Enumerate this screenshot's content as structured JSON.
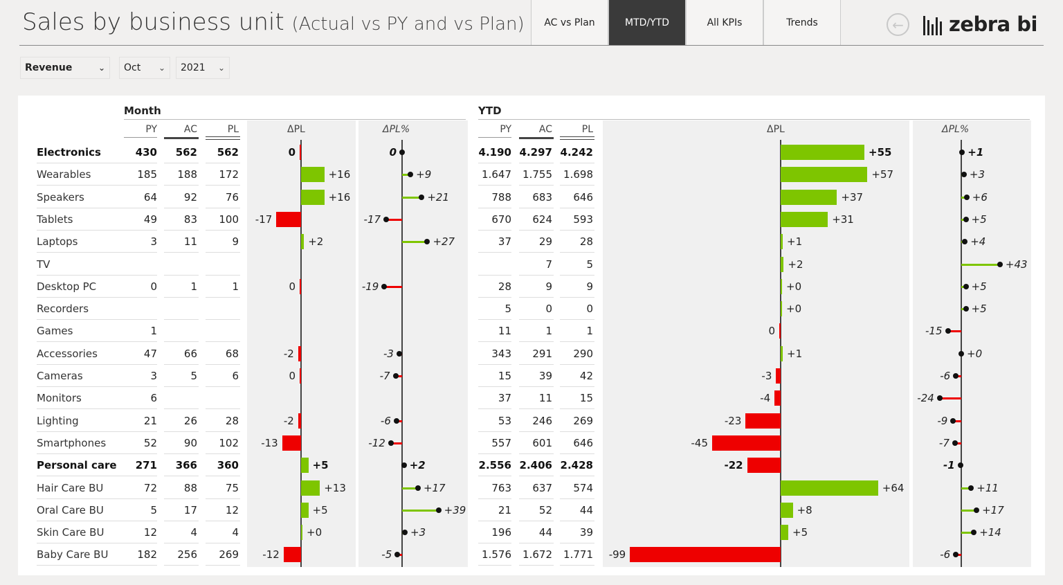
{
  "header": {
    "title": "Sales by business unit",
    "subtitle": "(Actual vs PY and vs Plan)",
    "tabs": [
      {
        "label": "AC vs Plan",
        "active": false
      },
      {
        "label": "MTD/YTD",
        "active": true
      },
      {
        "label": "All KPIs",
        "active": false
      },
      {
        "label": "Trends",
        "active": false
      }
    ],
    "back_icon": "arrow-left-circle-icon",
    "logo_text": "zebra bi"
  },
  "filters": {
    "measure": "Revenue",
    "month": "Oct",
    "year": "2021"
  },
  "colors": {
    "positive": "#7ec500",
    "negative": "#ee0000",
    "axis": "#444444",
    "active_tab": "#3a3a3a",
    "column_shade": "#f0f0f0"
  },
  "table": {
    "month_header": "Month",
    "ytd_header": "YTD",
    "col_headers": {
      "py": "PY",
      "ac": "AC",
      "pl": "PL",
      "dpl": "ΔPL",
      "dplpct": "ΔPL%"
    },
    "rows": [
      {
        "name": "Electronics",
        "bold": true,
        "m": {
          "py": "430",
          "ac": "562",
          "pl": "562",
          "dpl": 0,
          "dpl_label": "0",
          "pct": 0,
          "pct_label": "0"
        },
        "y": {
          "py": "4.190",
          "ac": "4.297",
          "pl": "4.242",
          "dpl": 55,
          "dpl_label": "+55",
          "pct": 1,
          "pct_label": "+1"
        }
      },
      {
        "name": "Wearables",
        "bold": false,
        "m": {
          "py": "185",
          "ac": "188",
          "pl": "172",
          "dpl": 16,
          "dpl_label": "+16",
          "pct": 9,
          "pct_label": "+9"
        },
        "y": {
          "py": "1.647",
          "ac": "1.755",
          "pl": "1.698",
          "dpl": 57,
          "dpl_label": "+57",
          "pct": 3,
          "pct_label": "+3"
        }
      },
      {
        "name": "Speakers",
        "bold": false,
        "m": {
          "py": "64",
          "ac": "92",
          "pl": "76",
          "dpl": 16,
          "dpl_label": "+16",
          "pct": 21,
          "pct_label": "+21"
        },
        "y": {
          "py": "788",
          "ac": "683",
          "pl": "646",
          "dpl": 37,
          "dpl_label": "+37",
          "pct": 6,
          "pct_label": "+6"
        }
      },
      {
        "name": "Tablets",
        "bold": false,
        "m": {
          "py": "49",
          "ac": "83",
          "pl": "100",
          "dpl": -17,
          "dpl_label": "-17",
          "pct": -17,
          "pct_label": "-17"
        },
        "y": {
          "py": "670",
          "ac": "624",
          "pl": "593",
          "dpl": 31,
          "dpl_label": "+31",
          "pct": 5,
          "pct_label": "+5"
        }
      },
      {
        "name": "Laptops",
        "bold": false,
        "m": {
          "py": "3",
          "ac": "11",
          "pl": "9",
          "dpl": 2,
          "dpl_label": "+2",
          "pct": 27,
          "pct_label": "+27"
        },
        "y": {
          "py": "37",
          "ac": "29",
          "pl": "28",
          "dpl": 1,
          "dpl_label": "+1",
          "pct": 4,
          "pct_label": "+4"
        }
      },
      {
        "name": "TV",
        "bold": false,
        "m": {
          "py": "",
          "ac": "",
          "pl": "",
          "dpl": null,
          "dpl_label": "",
          "pct": null,
          "pct_label": ""
        },
        "y": {
          "py": "",
          "ac": "7",
          "pl": "5",
          "dpl": 2,
          "dpl_label": "+2",
          "pct": 43,
          "pct_label": "+43"
        }
      },
      {
        "name": "Desktop PC",
        "bold": false,
        "m": {
          "py": "0",
          "ac": "1",
          "pl": "1",
          "dpl": 0,
          "dpl_label": "0",
          "pct": -19,
          "pct_label": "-19"
        },
        "y": {
          "py": "28",
          "ac": "9",
          "pl": "9",
          "dpl": 0,
          "dpl_label": "+0",
          "pct": 5,
          "pct_label": "+5"
        }
      },
      {
        "name": "Recorders",
        "bold": false,
        "m": {
          "py": "",
          "ac": "",
          "pl": "",
          "dpl": null,
          "dpl_label": "",
          "pct": null,
          "pct_label": ""
        },
        "y": {
          "py": "5",
          "ac": "0",
          "pl": "0",
          "dpl": 0,
          "dpl_label": "+0",
          "pct": 5,
          "pct_label": "+5"
        }
      },
      {
        "name": "Games",
        "bold": false,
        "m": {
          "py": "1",
          "ac": "",
          "pl": "",
          "dpl": null,
          "dpl_label": "",
          "pct": null,
          "pct_label": ""
        },
        "y": {
          "py": "11",
          "ac": "1",
          "pl": "1",
          "dpl": 0,
          "dpl_label": "0",
          "pct": -15,
          "pct_label": "-15"
        }
      },
      {
        "name": "Accessories",
        "bold": false,
        "m": {
          "py": "47",
          "ac": "66",
          "pl": "68",
          "dpl": -2,
          "dpl_label": "-2",
          "pct": -3,
          "pct_label": "-3"
        },
        "y": {
          "py": "343",
          "ac": "291",
          "pl": "290",
          "dpl": 1,
          "dpl_label": "+1",
          "pct": 0,
          "pct_label": "+0"
        }
      },
      {
        "name": "Cameras",
        "bold": false,
        "m": {
          "py": "3",
          "ac": "5",
          "pl": "6",
          "dpl": 0,
          "dpl_label": "0",
          "pct": -7,
          "pct_label": "-7"
        },
        "y": {
          "py": "15",
          "ac": "39",
          "pl": "42",
          "dpl": -3,
          "dpl_label": "-3",
          "pct": -6,
          "pct_label": "-6"
        }
      },
      {
        "name": "Monitors",
        "bold": false,
        "m": {
          "py": "6",
          "ac": "",
          "pl": "",
          "dpl": null,
          "dpl_label": "",
          "pct": null,
          "pct_label": ""
        },
        "y": {
          "py": "37",
          "ac": "11",
          "pl": "15",
          "dpl": -4,
          "dpl_label": "-4",
          "pct": -24,
          "pct_label": "-24"
        }
      },
      {
        "name": "Lighting",
        "bold": false,
        "m": {
          "py": "21",
          "ac": "26",
          "pl": "28",
          "dpl": -2,
          "dpl_label": "-2",
          "pct": -6,
          "pct_label": "-6"
        },
        "y": {
          "py": "53",
          "ac": "246",
          "pl": "269",
          "dpl": -23,
          "dpl_label": "-23",
          "pct": -9,
          "pct_label": "-9"
        }
      },
      {
        "name": "Smartphones",
        "bold": false,
        "m": {
          "py": "52",
          "ac": "90",
          "pl": "102",
          "dpl": -13,
          "dpl_label": "-13",
          "pct": -12,
          "pct_label": "-12"
        },
        "y": {
          "py": "557",
          "ac": "601",
          "pl": "646",
          "dpl": -45,
          "dpl_label": "-45",
          "pct": -7,
          "pct_label": "-7"
        }
      },
      {
        "name": "Personal care",
        "bold": true,
        "m": {
          "py": "271",
          "ac": "366",
          "pl": "360",
          "dpl": 5,
          "dpl_label": "+5",
          "pct": 2,
          "pct_label": "+2"
        },
        "y": {
          "py": "2.556",
          "ac": "2.406",
          "pl": "2.428",
          "dpl": -22,
          "dpl_label": "-22",
          "pct": -1,
          "pct_label": "-1"
        }
      },
      {
        "name": "Hair Care BU",
        "bold": false,
        "m": {
          "py": "72",
          "ac": "88",
          "pl": "75",
          "dpl": 13,
          "dpl_label": "+13",
          "pct": 17,
          "pct_label": "+17"
        },
        "y": {
          "py": "763",
          "ac": "637",
          "pl": "574",
          "dpl": 64,
          "dpl_label": "+64",
          "pct": 11,
          "pct_label": "+11"
        }
      },
      {
        "name": "Oral Care BU",
        "bold": false,
        "m": {
          "py": "5",
          "ac": "17",
          "pl": "12",
          "dpl": 5,
          "dpl_label": "+5",
          "pct": 39,
          "pct_label": "+39"
        },
        "y": {
          "py": "21",
          "ac": "52",
          "pl": "44",
          "dpl": 8,
          "dpl_label": "+8",
          "pct": 17,
          "pct_label": "+17"
        }
      },
      {
        "name": "Skin Care BU",
        "bold": false,
        "m": {
          "py": "12",
          "ac": "4",
          "pl": "4",
          "dpl": 0,
          "dpl_label": "+0",
          "pct": 3,
          "pct_label": "+3"
        },
        "y": {
          "py": "196",
          "ac": "44",
          "pl": "39",
          "dpl": 5,
          "dpl_label": "+5",
          "pct": 14,
          "pct_label": "+14"
        }
      },
      {
        "name": "Baby Care BU",
        "bold": false,
        "m": {
          "py": "182",
          "ac": "256",
          "pl": "269",
          "dpl": -12,
          "dpl_label": "-12",
          "pct": -5,
          "pct_label": "-5"
        },
        "y": {
          "py": "1.576",
          "ac": "1.672",
          "pl": "1.771",
          "dpl": -99,
          "dpl_label": "-99",
          "pct": -6,
          "pct_label": "-6"
        }
      }
    ]
  }
}
